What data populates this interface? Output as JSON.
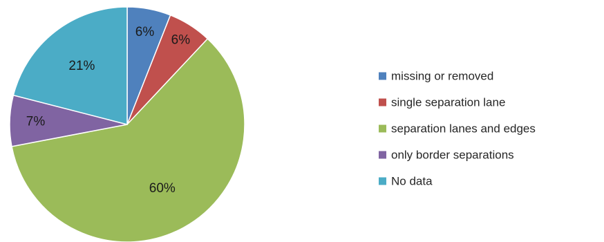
{
  "chart_data": {
    "type": "pie",
    "title": "",
    "labels": [
      "missing or removed",
      "single separation lane",
      "separation lanes and edges",
      "only border separations",
      "No data"
    ],
    "values": [
      6,
      6,
      60,
      7,
      21
    ],
    "value_labels": [
      "6%",
      "6%",
      "60%",
      "7%",
      "21%"
    ],
    "colors": [
      "#4f81bd",
      "#c0504d",
      "#9bbb59",
      "#8064a2",
      "#4bacc6"
    ],
    "start_angle_deg": 0,
    "direction": "clockwise",
    "legend_position": "right"
  }
}
